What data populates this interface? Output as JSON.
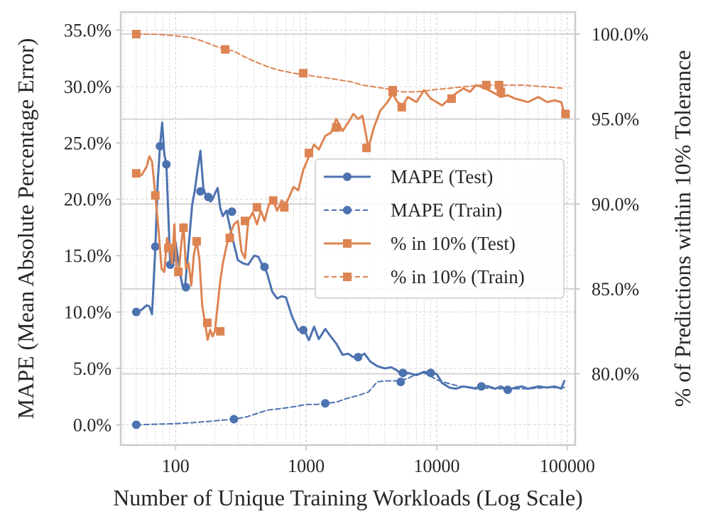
{
  "colors": {
    "mape": "#4c72b0",
    "pct": "#dd8452",
    "axes": "#cccccc",
    "text": "#262626"
  },
  "chart_data": {
    "type": "line",
    "title": "",
    "xlabel": "Number of Unique Training Workloads (Log Scale)",
    "ylabel_left": "MAPE (Mean Absolute Percentage Error)",
    "ylabel_right": "% of Predictions within 10% Tolerance",
    "x_scale": "log",
    "xlim": [
      38,
      115000
    ],
    "ylim_left": [
      -1.8,
      36.6
    ],
    "ylim_right": [
      75.8,
      101.3
    ],
    "x_ticks": [
      100,
      1000,
      10000,
      100000
    ],
    "x_tick_labels": [
      "100",
      "1000",
      "10000",
      "100000"
    ],
    "y_left_ticks": [
      0,
      5,
      10,
      15,
      20,
      25,
      30,
      35
    ],
    "y_left_tick_labels": [
      "0.0%",
      "5.0%",
      "10.0%",
      "15.0%",
      "20.0%",
      "25.0%",
      "30.0%",
      "35.0%"
    ],
    "y_right_ticks": [
      80,
      85,
      90,
      95,
      100
    ],
    "y_right_tick_labels": [
      "80.0%",
      "85.0%",
      "90.0%",
      "95.0%",
      "100.0%"
    ],
    "grid": true,
    "legend_position": "center-right",
    "series": [
      {
        "name": "MAPE (Test)",
        "axis": "left",
        "linestyle": "solid",
        "marker": "circle",
        "color": "#4c72b0",
        "x": [
          50,
          55,
          60,
          63,
          66,
          70,
          73,
          76,
          79,
          82,
          85,
          88,
          91,
          94,
          97,
          100,
          104,
          108,
          113,
          118,
          123,
          128,
          134,
          140,
          147,
          155,
          163,
          172,
          178,
          185,
          192,
          200,
          210,
          220,
          230,
          245,
          260,
          280,
          300,
          330,
          360,
          400,
          430,
          460,
          500,
          550,
          600,
          650,
          700,
          780,
          870,
          950,
          1050,
          1150,
          1250,
          1400,
          1550,
          1700,
          1900,
          2100,
          2300,
          2500,
          2800,
          3100,
          3500,
          4000,
          4500,
          5000,
          5500,
          6000,
          7000,
          8000,
          9000,
          10000,
          11000,
          12500,
          14000,
          16000,
          18000,
          20000,
          22000,
          25000,
          28000,
          31000,
          35000,
          40000,
          45000,
          50000,
          60000,
          70000,
          80000,
          90000,
          95000
        ],
        "y": [
          10,
          10.2,
          10.6,
          10.5,
          9.8,
          15.8,
          21.5,
          24.7,
          26.8,
          24.0,
          23.1,
          18.5,
          14.2,
          15.0,
          14.5,
          16.2,
          14.8,
          13.5,
          12.3,
          12.2,
          14.5,
          16.8,
          19.5,
          20.7,
          22.5,
          24.3,
          21.0,
          20.2,
          20.5,
          19.8,
          20.0,
          20.5,
          21.0,
          19.2,
          18.5,
          19.0,
          17.6,
          16.0,
          14.6,
          14.3,
          14.2,
          15.0,
          14.9,
          14.2,
          13.5,
          11.8,
          11.2,
          11.4,
          11.3,
          9.6,
          8.4,
          8.6,
          7.5,
          8.7,
          7.6,
          8.5,
          7.8,
          7.2,
          6.2,
          6.3,
          6.0,
          6.0,
          6.3,
          5.6,
          5.2,
          5.0,
          5.1,
          4.8,
          4.3,
          4.6,
          4.4,
          4.7,
          4.6,
          4.5,
          3.7,
          3.3,
          3.2,
          3.4,
          3.3,
          3.2,
          3.5,
          3.4,
          3.2,
          3.4,
          3.1,
          3.3,
          3.4,
          3.2,
          3.4,
          3.3,
          3.4,
          3.2,
          3.9
        ],
        "marker_x": [
          50,
          70,
          76,
          85,
          91,
          120,
          155,
          178,
          270,
          480,
          950,
          2500,
          5500,
          9000,
          22000,
          35000
        ],
        "marker_y": [
          10.0,
          15.8,
          24.7,
          23.1,
          14.2,
          12.2,
          20.7,
          20.2,
          18.9,
          14.0,
          8.4,
          6.0,
          4.6,
          4.6,
          3.4,
          3.1
        ]
      },
      {
        "name": "MAPE (Train)",
        "axis": "left",
        "linestyle": "dashed",
        "marker": "circle",
        "color": "#4c72b0",
        "x": [
          50,
          70,
          100,
          140,
          180,
          220,
          280,
          350,
          420,
          500,
          600,
          700,
          800,
          1000,
          1200,
          1400,
          1700,
          2000,
          2500,
          3000,
          3500,
          4000,
          4500,
          5000,
          6000,
          7000,
          8000,
          9000,
          10000,
          12000,
          15000,
          20000,
          30000,
          50000,
          70000,
          95000
        ],
        "y": [
          0,
          0.05,
          0.1,
          0.2,
          0.3,
          0.4,
          0.5,
          0.7,
          1.0,
          1.3,
          1.4,
          1.5,
          1.6,
          1.8,
          1.8,
          1.9,
          2.0,
          2.3,
          2.6,
          2.9,
          3.8,
          3.9,
          3.9,
          3.9,
          4.1,
          4.5,
          4.6,
          4.3,
          4.0,
          3.7,
          3.4,
          3.3,
          3.2,
          3.2,
          3.3,
          3.3
        ],
        "marker_x": [
          50,
          280,
          1400,
          5300
        ],
        "marker_y": [
          0.0,
          0.5,
          1.9,
          3.8
        ]
      },
      {
        "name": "% in 10% (Test)",
        "axis": "right",
        "linestyle": "solid",
        "marker": "square",
        "color": "#dd8452",
        "x": [
          50,
          55,
          60,
          63,
          66,
          70,
          74,
          78,
          82,
          86,
          90,
          94,
          98,
          102,
          106,
          110,
          115,
          120,
          126,
          132,
          138,
          145,
          152,
          160,
          168,
          176,
          184,
          192,
          200,
          210,
          220,
          230,
          245,
          260,
          280,
          300,
          320,
          340,
          360,
          390,
          420,
          450,
          480,
          520,
          560,
          600,
          650,
          700,
          750,
          800,
          870,
          950,
          1050,
          1150,
          1250,
          1400,
          1550,
          1700,
          1900,
          2100,
          2300,
          2500,
          2700,
          3000,
          3300,
          3700,
          4200,
          4600,
          5000,
          5500,
          6000,
          7000,
          8000,
          9000,
          10000,
          11000,
          12500,
          14000,
          16000,
          18000,
          20000,
          22000,
          25000,
          28000,
          31000,
          35000,
          40000,
          45000,
          50000,
          60000,
          70000,
          80000,
          90000,
          95000
        ],
        "y": [
          91.8,
          91.7,
          92.2,
          92.8,
          92.5,
          90.5,
          88.5,
          86.2,
          86.0,
          88.0,
          87.5,
          86.5,
          88.8,
          85.8,
          86.0,
          87.5,
          88.8,
          86.2,
          86.5,
          85.2,
          87.0,
          87.8,
          86.8,
          84.0,
          83.0,
          82.0,
          82.6,
          82.2,
          82.5,
          84.0,
          85.5,
          86.5,
          87.5,
          88.2,
          88.8,
          89.0,
          87.2,
          86.8,
          89.0,
          89.5,
          88.8,
          89.6,
          89.0,
          90.0,
          90.2,
          89.6,
          90.2,
          90.0,
          90.5,
          91.0,
          90.8,
          92.0,
          92.8,
          93.5,
          93.2,
          94.0,
          94.2,
          95.0,
          94.3,
          94.8,
          95.3,
          95.0,
          95.2,
          93.3,
          94.5,
          95.5,
          96.0,
          96.5,
          96.0,
          95.8,
          96.3,
          96.0,
          96.7,
          96.2,
          96.0,
          95.8,
          96.2,
          96.5,
          96.8,
          96.6,
          97.0,
          96.9,
          96.7,
          96.5,
          96.3,
          96.4,
          96.2,
          96.1,
          96.0,
          96.3,
          96.0,
          96.1,
          96.0,
          95.3
        ],
        "marker_x": [
          50,
          70,
          88,
          105,
          115,
          145,
          175,
          220,
          260,
          340,
          420,
          560,
          680,
          1050,
          1700,
          2900,
          4600,
          5400,
          13000,
          24000,
          31000,
          97000
        ],
        "marker_y": [
          91.8,
          90.5,
          87.4,
          86.0,
          88.6,
          87.8,
          83.0,
          82.5,
          88.0,
          89.0,
          89.8,
          90.2,
          89.8,
          93.0,
          94.5,
          93.3,
          96.6,
          95.7,
          96.2,
          97.0,
          96.6,
          95.3
        ]
      },
      {
        "name": "% in 10% (Train)",
        "axis": "right",
        "linestyle": "dashed",
        "marker": "square",
        "color": "#dd8452",
        "x": [
          50,
          70,
          100,
          130,
          160,
          200,
          240,
          280,
          330,
          400,
          500,
          600,
          700,
          800,
          1000,
          1200,
          1500,
          1800,
          2200,
          2700,
          3300,
          4000,
          4600,
          5500,
          7000,
          9000,
          12000,
          16000,
          22000,
          30000,
          45000,
          70000,
          95000
        ],
        "y": [
          100,
          100,
          99.9,
          99.8,
          99.6,
          99.3,
          99.1,
          99.0,
          98.7,
          98.4,
          98.1,
          97.9,
          97.8,
          97.7,
          97.6,
          97.5,
          97.4,
          97.3,
          97.2,
          97.0,
          96.9,
          96.8,
          96.7,
          96.6,
          96.6,
          96.7,
          96.8,
          96.9,
          97.0,
          97.0,
          97.0,
          96.9,
          96.8
        ],
        "marker_x": [
          50,
          240,
          950,
          4600,
          30000
        ],
        "marker_y": [
          100.0,
          99.1,
          97.7,
          96.7,
          97.0
        ]
      }
    ]
  }
}
